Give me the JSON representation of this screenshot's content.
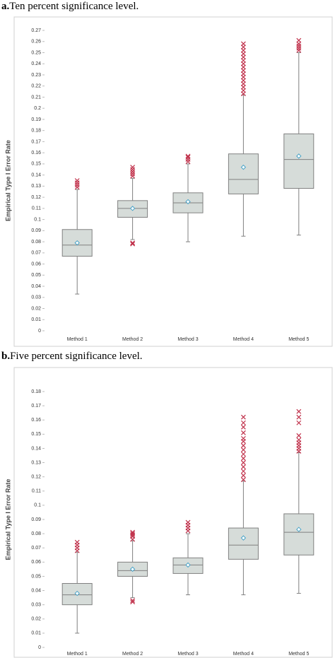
{
  "chart_data": [
    {
      "type": "box",
      "label": "a.",
      "title": "Ten percent significance level.",
      "y_label": "Empirical Type I Error Rate",
      "categories": [
        "Method 1",
        "Method 2",
        "Method 3",
        "Method 4",
        "Method 5"
      ],
      "boxes": [
        {
          "whisker_low": 0.033,
          "q1": 0.067,
          "median": 0.077,
          "q3": 0.091,
          "whisker_high": 0.127,
          "mean": 0.079,
          "outliers": [
            0.129,
            0.131,
            0.133,
            0.135
          ]
        },
        {
          "whisker_low": 0.082,
          "q1": 0.102,
          "median": 0.11,
          "q3": 0.117,
          "whisker_high": 0.137,
          "mean": 0.11,
          "outliers": [
            0.078,
            0.079,
            0.139,
            0.141,
            0.143,
            0.145,
            0.147
          ]
        },
        {
          "whisker_low": 0.08,
          "q1": 0.106,
          "median": 0.115,
          "q3": 0.124,
          "whisker_high": 0.15,
          "mean": 0.116,
          "outliers": [
            0.152,
            0.154,
            0.156,
            0.157
          ]
        },
        {
          "whisker_low": 0.085,
          "q1": 0.123,
          "median": 0.136,
          "q3": 0.159,
          "whisker_high": 0.212,
          "mean": 0.147,
          "outliers": [
            0.213,
            0.216,
            0.219,
            0.222,
            0.225,
            0.228,
            0.231,
            0.234,
            0.237,
            0.24,
            0.243,
            0.246,
            0.249,
            0.252,
            0.255,
            0.258
          ]
        },
        {
          "whisker_low": 0.086,
          "q1": 0.128,
          "median": 0.154,
          "q3": 0.177,
          "whisker_high": 0.25,
          "mean": 0.157,
          "outliers": [
            0.252,
            0.254,
            0.256,
            0.258,
            0.261
          ]
        }
      ],
      "box_color": "#d6dcd9",
      "line_color": "#808080",
      "mean_color": "#4aa3c7",
      "outlier_color": "#c0304a",
      "ylim": [
        0,
        0.27
      ],
      "yticks": [
        0,
        0.01,
        0.02,
        0.03,
        0.04,
        0.05,
        0.06,
        0.07,
        0.08,
        0.09,
        0.1,
        0.11,
        0.12,
        0.13,
        0.14,
        0.15,
        0.16,
        0.17,
        0.18,
        0.19,
        0.2,
        0.21,
        0.22,
        0.23,
        0.24,
        0.25,
        0.26,
        0.27
      ]
    },
    {
      "type": "box",
      "label": "b.",
      "title": "Five percent significance level.",
      "y_label": "Empirical Type I Error Rate",
      "categories": [
        "Method 1",
        "Method 2",
        "Method 3",
        "Method 4",
        "Method 5"
      ],
      "boxes": [
        {
          "whisker_low": 0.01,
          "q1": 0.03,
          "median": 0.037,
          "q3": 0.045,
          "whisker_high": 0.067,
          "mean": 0.038,
          "outliers": [
            0.068,
            0.07,
            0.072,
            0.074
          ]
        },
        {
          "whisker_low": 0.035,
          "q1": 0.05,
          "median": 0.054,
          "q3": 0.06,
          "whisker_high": 0.075,
          "mean": 0.055,
          "outliers": [
            0.032,
            0.033,
            0.076,
            0.078,
            0.079,
            0.08,
            0.081
          ]
        },
        {
          "whisker_low": 0.037,
          "q1": 0.052,
          "median": 0.058,
          "q3": 0.063,
          "whisker_high": 0.08,
          "mean": 0.058,
          "outliers": [
            0.082,
            0.084,
            0.086,
            0.088
          ]
        },
        {
          "whisker_low": 0.037,
          "q1": 0.062,
          "median": 0.072,
          "q3": 0.084,
          "whisker_high": 0.117,
          "mean": 0.077,
          "outliers": [
            0.118,
            0.121,
            0.124,
            0.127,
            0.13,
            0.133,
            0.136,
            0.139,
            0.142,
            0.145,
            0.147,
            0.151,
            0.155,
            0.158,
            0.162
          ]
        },
        {
          "whisker_low": 0.038,
          "q1": 0.065,
          "median": 0.081,
          "q3": 0.094,
          "whisker_high": 0.137,
          "mean": 0.083,
          "outliers": [
            0.138,
            0.14,
            0.142,
            0.144,
            0.146,
            0.149,
            0.158,
            0.162,
            0.166
          ]
        }
      ],
      "box_color": "#d6dcd9",
      "line_color": "#808080",
      "mean_color": "#4aa3c7",
      "outlier_color": "#c0304a",
      "ylim": [
        0,
        0.18
      ],
      "yticks": [
        0,
        0.01,
        0.02,
        0.03,
        0.04,
        0.05,
        0.06,
        0.07,
        0.08,
        0.09,
        0.1,
        0.11,
        0.12,
        0.13,
        0.14,
        0.15,
        0.16,
        0.17,
        0.18
      ]
    }
  ]
}
